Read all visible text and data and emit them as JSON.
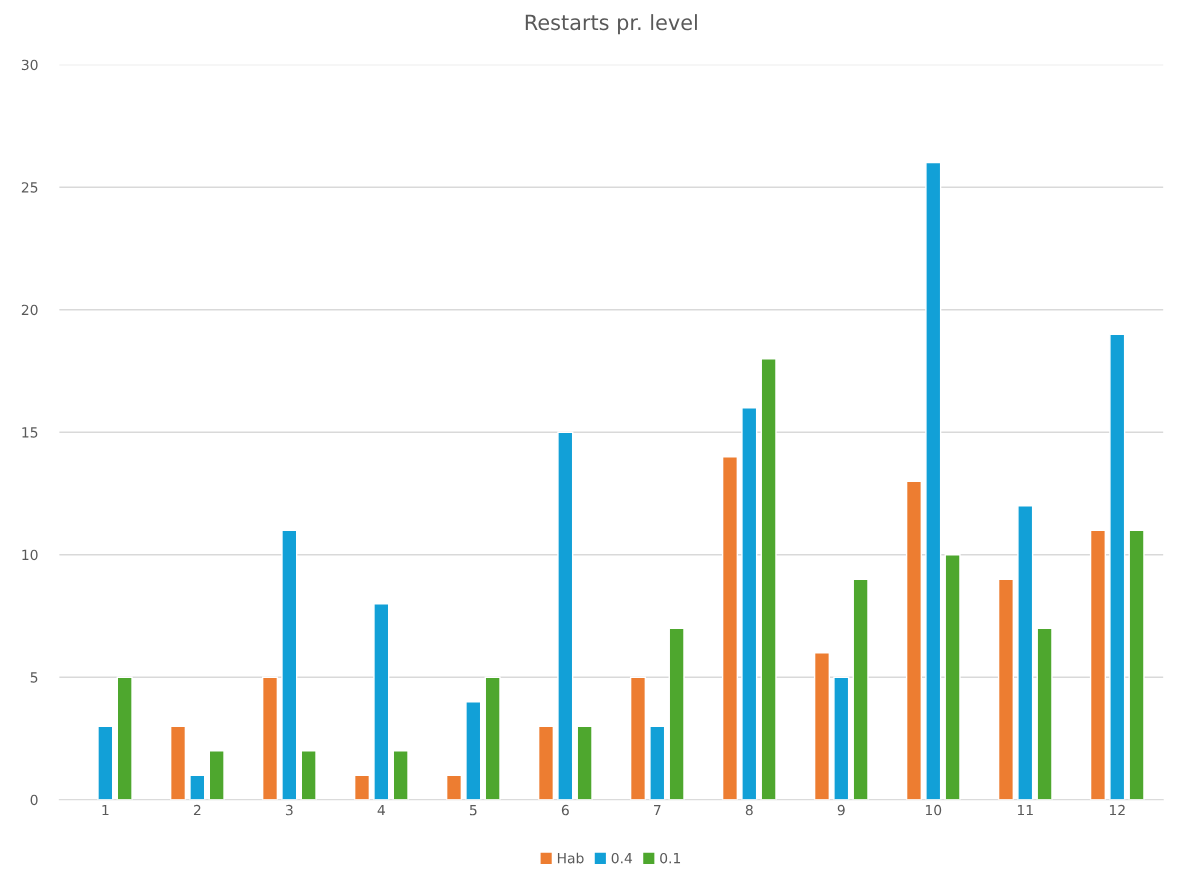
{
  "chart_data": {
    "type": "bar",
    "title": "Restarts pr. level",
    "categories": [
      "1",
      "2",
      "3",
      "4",
      "5",
      "6",
      "7",
      "8",
      "9",
      "10",
      "11",
      "12"
    ],
    "series": [
      {
        "name": "Hab",
        "color": "#ed7d31",
        "values": [
          null,
          3,
          5,
          1,
          1,
          3,
          5,
          14,
          6,
          13,
          9,
          11
        ]
      },
      {
        "name": "0.4",
        "color": "#12a0d7",
        "values": [
          3,
          1,
          11,
          8,
          4,
          15,
          3,
          16,
          5,
          26,
          12,
          19
        ]
      },
      {
        "name": "0.1",
        "color": "#4ea72e",
        "values": [
          5,
          2,
          2,
          2,
          5,
          3,
          7,
          18,
          9,
          10,
          7,
          11
        ]
      }
    ],
    "ylim": [
      0,
      30
    ],
    "yticks": [
      0,
      5,
      10,
      15,
      20,
      25,
      30
    ],
    "grid": "y",
    "legend": "bottom"
  }
}
